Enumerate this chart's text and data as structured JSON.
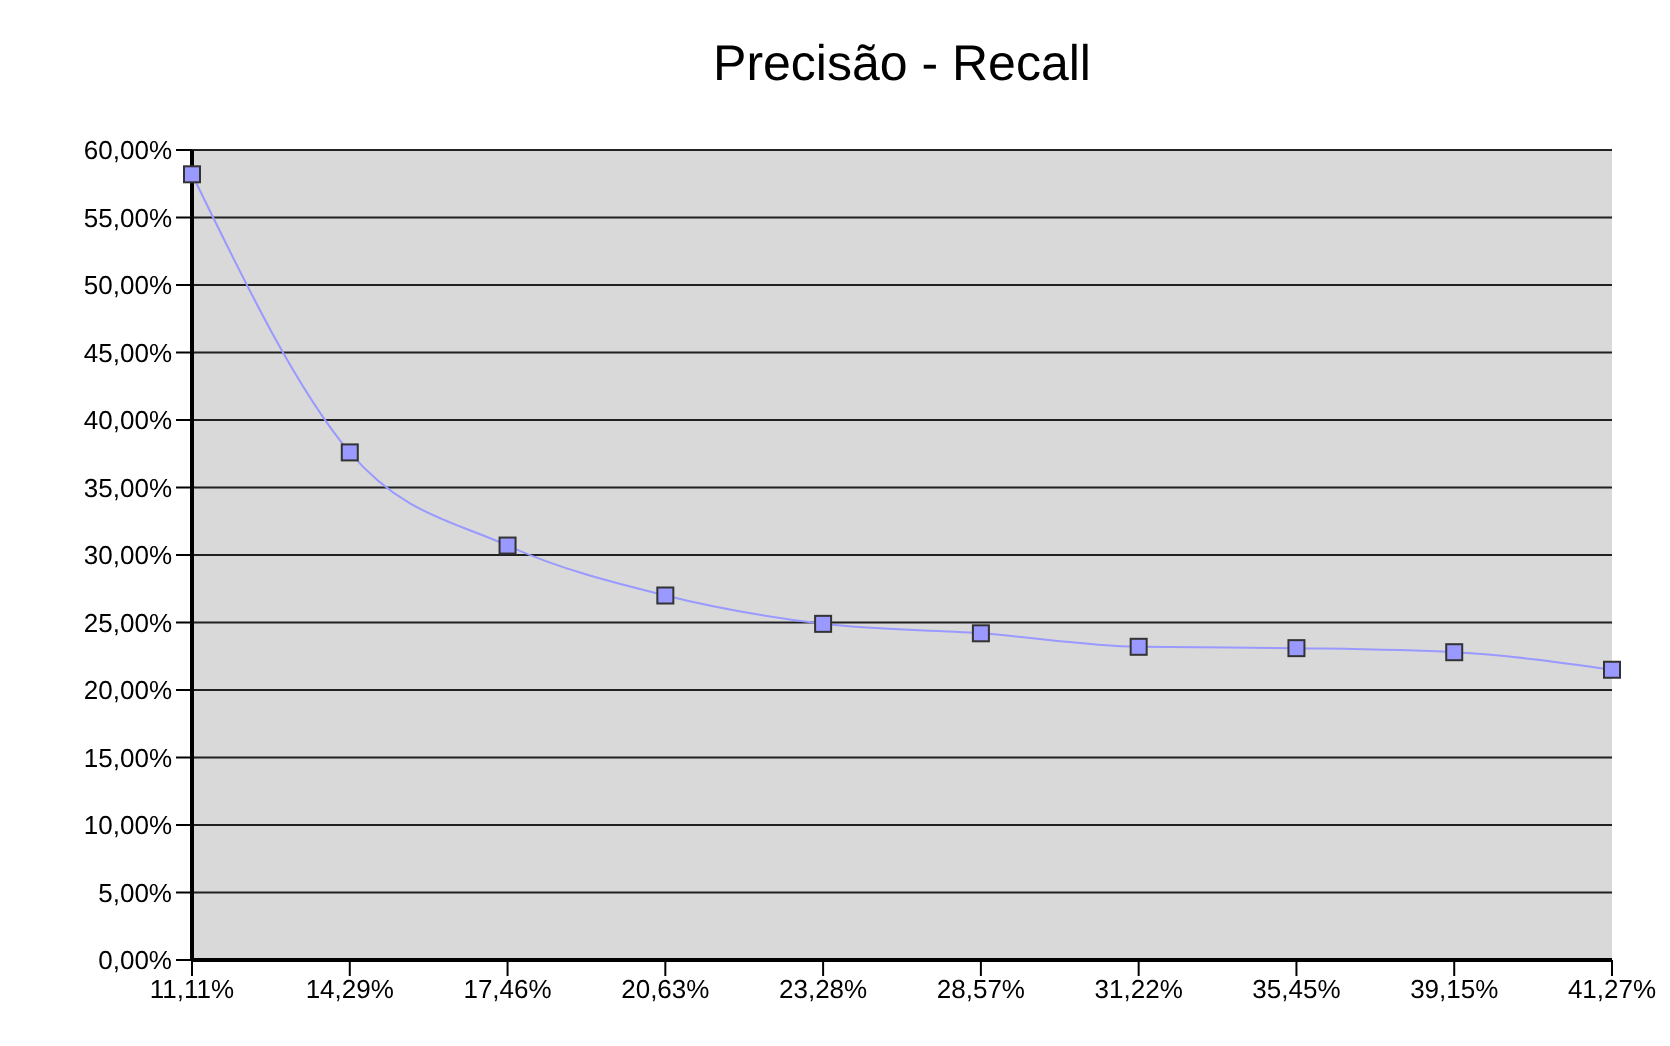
{
  "chart_data": {
    "type": "line",
    "title": "Precisão - Recall",
    "categories": [
      "11,11%",
      "14,29%",
      "17,46%",
      "20,63%",
      "23,28%",
      "28,57%",
      "31,22%",
      "35,45%",
      "39,15%",
      "41,27%"
    ],
    "series": [
      {
        "color": "#9999ff",
        "values": [
          58.2,
          37.6,
          30.7,
          27.0,
          24.9,
          24.2,
          23.2,
          23.1,
          22.8,
          21.5
        ]
      }
    ],
    "ylim": [
      0,
      60
    ],
    "yticks": [
      {
        "value": 0,
        "label": "0,00%"
      },
      {
        "value": 5,
        "label": "5,00%"
      },
      {
        "value": 10,
        "label": "10,00%"
      },
      {
        "value": 15,
        "label": "15,00%"
      },
      {
        "value": 20,
        "label": "20,00%"
      },
      {
        "value": 25,
        "label": "25,00%"
      },
      {
        "value": 30,
        "label": "30,00%"
      },
      {
        "value": 35,
        "label": "35,00%"
      },
      {
        "value": 40,
        "label": "40,00%"
      },
      {
        "value": 45,
        "label": "45,00%"
      },
      {
        "value": 50,
        "label": "50,00%"
      },
      {
        "value": 55,
        "label": "55,00%"
      },
      {
        "value": 60,
        "label": "60,00%"
      }
    ],
    "grid": "y",
    "marker": "square",
    "line_style": "solid"
  }
}
